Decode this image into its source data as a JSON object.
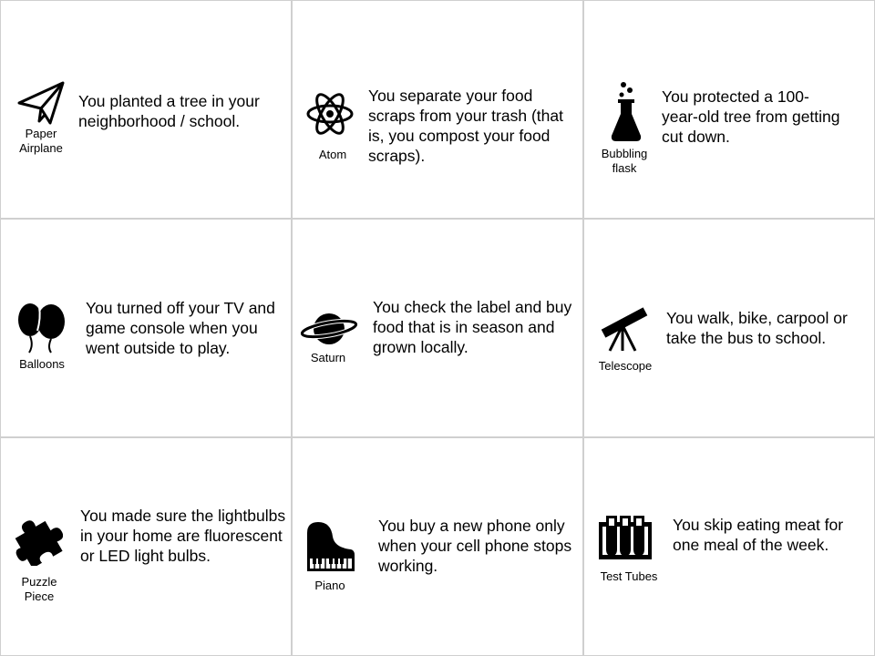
{
  "cards": [
    {
      "caption": "Paper\nAirplane",
      "icon": "paper-airplane-icon",
      "text": "You planted a tree in your neighborhood / school."
    },
    {
      "caption": "Atom",
      "icon": "atom-icon",
      "text": "You separate your food scraps from your trash (that is, you compost your food scraps)."
    },
    {
      "caption": "Bubbling\nflask",
      "icon": "bubbling-flask-icon",
      "text": "You protected a 100-year-old tree from getting cut down."
    },
    {
      "caption": "Balloons",
      "icon": "balloons-icon",
      "text": "You turned off your TV and game console when you went outside to play."
    },
    {
      "caption": "Saturn",
      "icon": "saturn-icon",
      "text": "You check the label and buy food that is in season and grown locally."
    },
    {
      "caption": "Telescope",
      "icon": "telescope-icon",
      "text": "You walk, bike, carpool or take the bus to school."
    },
    {
      "caption": "Puzzle\nPiece",
      "icon": "puzzle-piece-icon",
      "text": "You made sure the lightbulbs in your home are fluorescent or LED light bulbs."
    },
    {
      "caption": "Piano",
      "icon": "piano-icon",
      "text": "You buy a new phone only when your cell phone stops working."
    },
    {
      "caption": "Test Tubes",
      "icon": "test-tubes-icon",
      "text": "You skip eating meat for one meal of the week."
    }
  ]
}
